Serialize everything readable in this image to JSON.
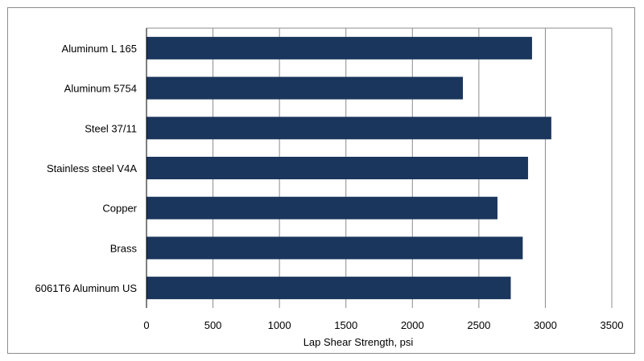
{
  "chart_data": {
    "type": "bar",
    "orientation": "horizontal",
    "categories": [
      "Aluminum L 165",
      "Aluminum 5754",
      "Steel 37/11",
      "Stainless steel V4A",
      "Copper",
      "Brass",
      "6061T6 Aluminum US"
    ],
    "values": [
      2900,
      2380,
      3045,
      2870,
      2640,
      2830,
      2740
    ],
    "xlabel": "Lap Shear Strength, psi",
    "ylabel": "",
    "xlim": [
      0,
      3500
    ],
    "xticks": [
      "0",
      "500",
      "1000",
      "1500",
      "2000",
      "2500",
      "3000",
      "3500"
    ],
    "grid": true,
    "legend": "none",
    "bar_color": "#1b365d",
    "grid_color": "#8c8c8c"
  }
}
